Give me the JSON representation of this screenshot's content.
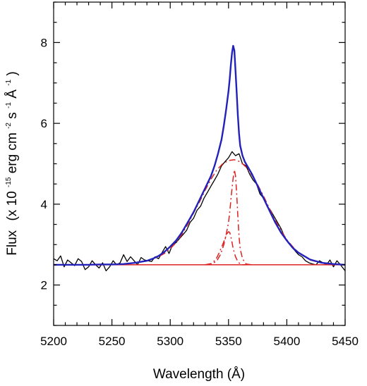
{
  "chart_data": {
    "type": "line",
    "title": "",
    "xlabel": "Wavelength (Å)",
    "ylabel": {
      "prefix": "Flux",
      "open": "(x 10",
      "exp1": "-15",
      "unit1": " erg cm",
      "exp2": "-2",
      "unit2": " s",
      "exp3": "-1",
      "unit3": " Å",
      "exp4": "-1",
      "close": ")"
    },
    "xlim": [
      5200,
      5450
    ],
    "ylim": [
      1.0,
      9.0
    ],
    "xticks": [
      5200,
      5250,
      5300,
      5350,
      5400,
      5450
    ],
    "yticks": [
      2,
      4,
      6,
      8
    ],
    "grid": false,
    "legend": "none",
    "series": [
      {
        "role": "observed",
        "color": "#000000",
        "style": "solid",
        "x": [
          5200,
          5203,
          5206,
          5209,
          5212,
          5215,
          5218,
          5221,
          5224,
          5227,
          5230,
          5233,
          5236,
          5239,
          5242,
          5245,
          5248,
          5251,
          5254,
          5257,
          5260,
          5263,
          5266,
          5269,
          5272,
          5275,
          5278,
          5281,
          5284,
          5287,
          5290,
          5293,
          5296,
          5299,
          5302,
          5305,
          5308,
          5311,
          5314,
          5317,
          5320,
          5323,
          5326,
          5329,
          5332,
          5335,
          5338,
          5341,
          5344,
          5347,
          5350,
          5353,
          5356,
          5359,
          5362,
          5365,
          5368,
          5371,
          5374,
          5377,
          5380,
          5383,
          5386,
          5389,
          5392,
          5395,
          5398,
          5401,
          5404,
          5407,
          5410,
          5413,
          5416,
          5419,
          5422,
          5425,
          5428,
          5431,
          5434,
          5437,
          5440,
          5443,
          5446,
          5450
        ],
        "y": [
          2.65,
          2.6,
          2.72,
          2.45,
          2.62,
          2.55,
          2.48,
          2.65,
          2.58,
          2.38,
          2.45,
          2.6,
          2.5,
          2.42,
          2.55,
          2.35,
          2.45,
          2.6,
          2.5,
          2.55,
          2.75,
          2.58,
          2.7,
          2.6,
          2.5,
          2.68,
          2.62,
          2.6,
          2.58,
          2.7,
          2.65,
          2.8,
          2.95,
          2.78,
          3.0,
          3.05,
          3.15,
          3.25,
          3.35,
          3.55,
          3.65,
          3.85,
          3.95,
          4.15,
          4.3,
          4.45,
          4.6,
          4.75,
          4.95,
          5.05,
          5.15,
          5.3,
          5.2,
          5.25,
          5.0,
          4.95,
          4.75,
          4.6,
          4.5,
          4.25,
          4.15,
          3.95,
          3.85,
          3.7,
          3.55,
          3.4,
          3.2,
          3.05,
          2.95,
          2.85,
          2.75,
          2.7,
          2.6,
          2.55,
          2.52,
          2.5,
          2.6,
          2.55,
          2.5,
          2.62,
          2.45,
          2.6,
          2.5,
          2.35
        ]
      },
      {
        "role": "total fit",
        "color": "#2222bb",
        "style": "solid",
        "x": [
          5200,
          5210,
          5220,
          5230,
          5240,
          5250,
          5260,
          5270,
          5280,
          5285,
          5290,
          5295,
          5300,
          5305,
          5310,
          5315,
          5320,
          5325,
          5330,
          5335,
          5338,
          5341,
          5344,
          5346,
          5348,
          5350,
          5351,
          5352,
          5353,
          5354,
          5355,
          5356,
          5357,
          5358,
          5359,
          5360,
          5362,
          5364,
          5367,
          5370,
          5375,
          5380,
          5385,
          5390,
          5395,
          5400,
          5405,
          5410,
          5420,
          5430,
          5440,
          5450
        ],
        "y": [
          2.5,
          2.5,
          2.5,
          2.5,
          2.51,
          2.51,
          2.52,
          2.55,
          2.6,
          2.65,
          2.72,
          2.82,
          2.95,
          3.1,
          3.3,
          3.55,
          3.8,
          4.1,
          4.4,
          4.7,
          4.95,
          5.25,
          5.6,
          5.95,
          6.35,
          6.8,
          7.1,
          7.45,
          7.75,
          7.92,
          7.8,
          7.3,
          6.75,
          6.2,
          5.75,
          5.45,
          5.2,
          5.05,
          4.9,
          4.75,
          4.45,
          4.15,
          3.85,
          3.55,
          3.3,
          3.1,
          2.92,
          2.8,
          2.63,
          2.55,
          2.52,
          2.5
        ]
      },
      {
        "role": "continuum",
        "color": "#dd2222",
        "style": "solid",
        "x": [
          5200,
          5450
        ],
        "y": [
          2.5,
          2.5
        ]
      },
      {
        "role": "broad component",
        "color": "#dd2222",
        "style": "dashdot",
        "x": [
          5200,
          5220,
          5240,
          5260,
          5270,
          5280,
          5290,
          5295,
          5300,
          5305,
          5310,
          5315,
          5320,
          5325,
          5330,
          5335,
          5340,
          5345,
          5350,
          5355,
          5360,
          5365,
          5370,
          5375,
          5380,
          5385,
          5390,
          5395,
          5400,
          5405,
          5410,
          5420,
          5430,
          5440,
          5450
        ],
        "y": [
          2.5,
          2.5,
          2.5,
          2.52,
          2.55,
          2.6,
          2.7,
          2.78,
          2.9,
          3.05,
          3.25,
          3.5,
          3.78,
          4.05,
          4.35,
          4.62,
          4.85,
          5.0,
          5.08,
          5.1,
          5.05,
          4.92,
          4.72,
          4.48,
          4.2,
          3.9,
          3.6,
          3.35,
          3.12,
          2.95,
          2.8,
          2.62,
          2.54,
          2.51,
          2.5
        ]
      },
      {
        "role": "narrow component",
        "color": "#dd2222",
        "style": "dashdot",
        "x": [
          5330,
          5336,
          5340,
          5343,
          5346,
          5348,
          5350,
          5351,
          5352,
          5353,
          5354,
          5355,
          5356,
          5357,
          5358,
          5359,
          5360,
          5362,
          5365,
          5370
        ],
        "y": [
          2.5,
          2.52,
          2.6,
          2.75,
          3.0,
          3.25,
          3.55,
          3.8,
          4.1,
          4.4,
          4.65,
          4.85,
          4.7,
          4.25,
          3.7,
          3.2,
          2.9,
          2.65,
          2.52,
          2.5
        ]
      },
      {
        "role": "narrow component 2",
        "color": "#dd2222",
        "style": "dashdot",
        "x": [
          5330,
          5335,
          5339,
          5342,
          5345,
          5347,
          5349,
          5350,
          5351,
          5352,
          5353,
          5354,
          5356,
          5358,
          5360,
          5362,
          5365
        ],
        "y": [
          2.5,
          2.53,
          2.62,
          2.8,
          3.0,
          3.15,
          3.28,
          3.32,
          3.3,
          3.2,
          3.05,
          2.9,
          2.7,
          2.58,
          2.52,
          2.5,
          2.5
        ]
      }
    ]
  }
}
